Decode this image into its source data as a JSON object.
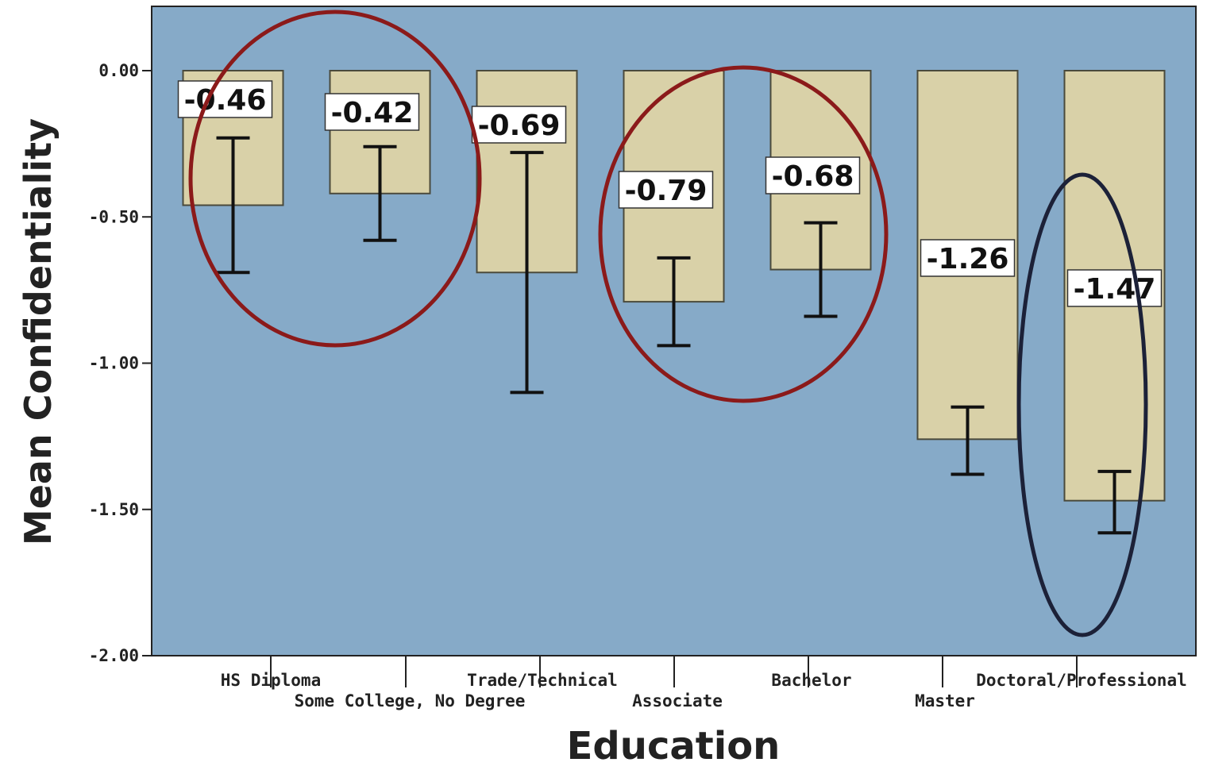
{
  "colors": {
    "plot_background": "#86aac8",
    "bar_fill": "#d9d1a8",
    "bar_stroke": "#4a4a3c",
    "error_bar": "#111111",
    "label_box_fill": "#ffffff",
    "label_box_stroke": "#333333",
    "red_ellipse": "#8b1a1a",
    "navy_ellipse": "#1c2138"
  },
  "chart_data": {
    "type": "bar",
    "title": "",
    "xlabel": "Education",
    "ylabel": "Mean Confidentiality",
    "ylim": [
      -2.0,
      0.2
    ],
    "yticks": [
      0.0,
      -0.5,
      -1.0,
      -1.5,
      -2.0
    ],
    "ytick_labels": [
      "0.00",
      "-0.50",
      "-1.00",
      "-1.50",
      "-2.00"
    ],
    "grid": false,
    "legend": "none",
    "categories": [
      "HS Diploma",
      "Some College, No Degree",
      "Trade/Technical",
      "Associate",
      "Bachelor",
      "Master",
      "Doctoral/Professional"
    ],
    "values": [
      -0.46,
      -0.42,
      -0.69,
      -0.79,
      -0.68,
      -1.26,
      -1.47
    ],
    "value_labels": [
      "-0.46",
      "-0.42",
      "-0.69",
      "-0.79",
      "-0.68",
      "-1.26",
      "-1.47"
    ],
    "error_low": [
      -0.69,
      -0.58,
      -1.1,
      -0.94,
      -0.84,
      -1.38,
      -1.58
    ],
    "error_high": [
      -0.23,
      -0.26,
      -0.28,
      -0.64,
      -0.52,
      -1.15,
      -1.37
    ],
    "highlights": [
      {
        "shape": "ellipse",
        "color": "red",
        "categories": [
          "HS Diploma",
          "Some College, No Degree"
        ]
      },
      {
        "shape": "ellipse",
        "color": "red",
        "categories": [
          "Associate",
          "Bachelor"
        ]
      },
      {
        "shape": "ellipse",
        "color": "navy",
        "categories": [
          "Doctoral/Professional"
        ]
      }
    ]
  }
}
